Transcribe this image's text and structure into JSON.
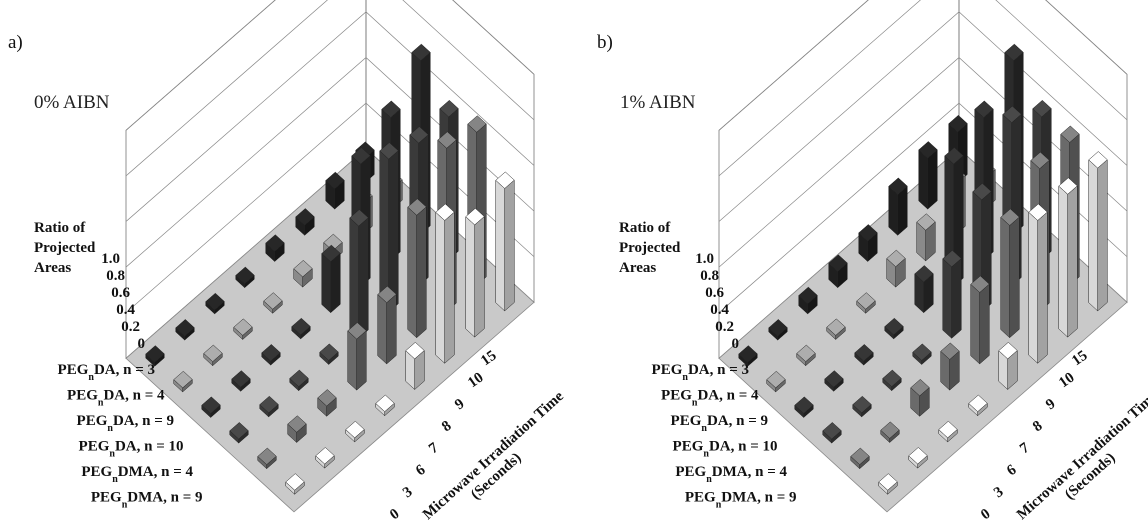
{
  "chart_data": [
    {
      "type": "bar3d",
      "panel_label": "a)",
      "title": "0% AIBN",
      "zlabel": [
        "Ratio of",
        "Projected",
        "Areas"
      ],
      "zticks": [
        "0",
        "0.2",
        "0.4",
        "0.6",
        "0.8",
        "1.0"
      ],
      "zlim": [
        0,
        1.0
      ],
      "rows": [
        "PEG_nDA, n = 3",
        "PEG_nDA, n = 4",
        "PEG_nDA, n = 9",
        "PEG_nDA, n = 10",
        "PEG_nDMA, n = 4",
        "PEG_nDMA, n = 9"
      ],
      "time_label": [
        "Microwave Irradiation Time",
        "(Seconds)"
      ],
      "time_ticks": [
        "0",
        "3",
        "6",
        "7",
        "8",
        "9",
        "10",
        "15"
      ],
      "values": [
        [
          0.02,
          0.02,
          0.02,
          0.02,
          0.05,
          0.05,
          0.1,
          0.12
        ],
        [
          0.02,
          0.02,
          0.02,
          0.02,
          0.05,
          0.05,
          0.15,
          0.1
        ],
        [
          0.02,
          0.02,
          0.02,
          0.02,
          0.25,
          0.6,
          0.7,
          0.85
        ],
        [
          0.02,
          0.02,
          0.02,
          0.02,
          0.55,
          0.75,
          0.7,
          0.7
        ],
        [
          0.02,
          0.05,
          0.05,
          0.25,
          0.3,
          0.6,
          0.8,
          0.75
        ],
        [
          0.02,
          0.02,
          0.02,
          0.02,
          0.15,
          0.7,
          0.55,
          0.6
        ]
      ],
      "row_colors": [
        "#1f1f1f",
        "#8a8a8a",
        "#2b2b2b",
        "#3a3a3a",
        "#6a6a6a",
        "#d8d8d8"
      ]
    },
    {
      "type": "bar3d",
      "panel_label": "b)",
      "title": "1% AIBN",
      "zlabel": [
        "Ratio of",
        "Projected",
        "Areas"
      ],
      "zticks": [
        "0",
        "0.2",
        "0.4",
        "0.6",
        "0.8",
        "1.0"
      ],
      "zlim": [
        0,
        1.0
      ],
      "rows": [
        "PEG_nDA, n = 3",
        "PEG_nDA, n = 4",
        "PEG_nDA, n = 9",
        "PEG_nDA, n = 10",
        "PEG_nDMA, n = 4",
        "PEG_nDMA, n = 9"
      ],
      "time_label": [
        "Microwave Irradiation Time",
        "(Seconds)"
      ],
      "time_ticks": [
        "0",
        "3",
        "6",
        "7",
        "8",
        "9",
        "10",
        "15"
      ],
      "values": [
        [
          0.02,
          0.02,
          0.05,
          0.08,
          0.1,
          0.2,
          0.25,
          0.25
        ],
        [
          0.02,
          0.02,
          0.02,
          0.02,
          0.1,
          0.15,
          0.25,
          0.15
        ],
        [
          0.02,
          0.02,
          0.02,
          0.02,
          0.15,
          0.6,
          0.7,
          0.85
        ],
        [
          0.02,
          0.02,
          0.02,
          0.02,
          0.35,
          0.55,
          0.8,
          0.7
        ],
        [
          0.02,
          0.02,
          0.1,
          0.15,
          0.35,
          0.55,
          0.7,
          0.7
        ],
        [
          0.02,
          0.02,
          0.02,
          0.02,
          0.15,
          0.7,
          0.7,
          0.7
        ]
      ],
      "row_colors": [
        "#1f1f1f",
        "#8a8a8a",
        "#2b2b2b",
        "#3a3a3a",
        "#6a6a6a",
        "#d8d8d8"
      ]
    }
  ]
}
